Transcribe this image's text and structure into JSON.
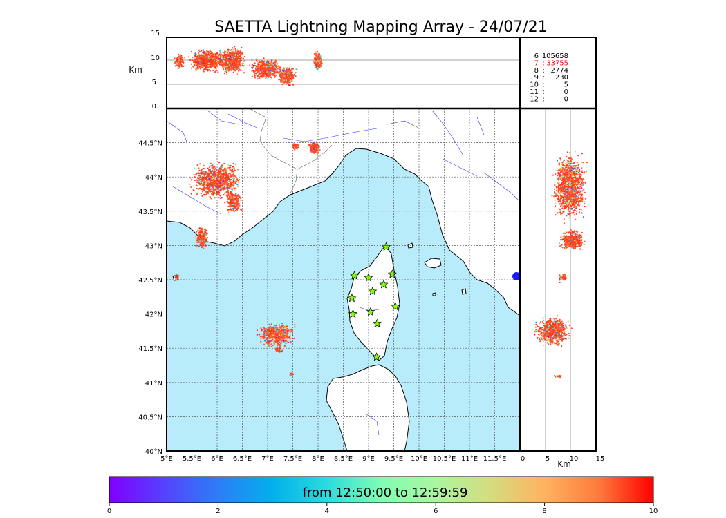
{
  "title": "SAETTA Lightning Mapping Array - 24/07/21",
  "top_panel": {
    "y_label": "Km",
    "y_ticks": [
      "15",
      "10",
      "5",
      "0"
    ],
    "y_range": [
      0,
      15
    ]
  },
  "right_panel": {
    "x_label": "Km",
    "x_ticks": [
      "0",
      "5",
      "10",
      "15"
    ],
    "x_range": [
      0,
      15
    ]
  },
  "map": {
    "lon_range": [
      5,
      12
    ],
    "lat_range": [
      40,
      45
    ],
    "lon_ticks": [
      "5°E",
      "5.5°E",
      "6°E",
      "6.5°E",
      "7°E",
      "7.5°E",
      "8°E",
      "8.5°E",
      "9°E",
      "9.5°E",
      "10°E",
      "10.5°E",
      "11°E",
      "11.5°E"
    ],
    "lat_ticks": [
      "44.5°N",
      "44°N",
      "43.5°N",
      "43°N",
      "42.5°N",
      "42°N",
      "41.5°N",
      "41°N",
      "40.5°N",
      "40°N"
    ],
    "sea_color": "#b8ecfb",
    "land_color": "#ffffff",
    "station_color": "#7fff00",
    "stations": [
      {
        "lon": 9.35,
        "lat": 42.98
      },
      {
        "lon": 8.72,
        "lat": 42.56
      },
      {
        "lon": 9.0,
        "lat": 42.53
      },
      {
        "lon": 9.47,
        "lat": 42.58
      },
      {
        "lon": 9.3,
        "lat": 42.43
      },
      {
        "lon": 9.08,
        "lat": 42.33
      },
      {
        "lon": 8.67,
        "lat": 42.23
      },
      {
        "lon": 9.53,
        "lat": 42.11
      },
      {
        "lon": 8.69,
        "lat": 42.0
      },
      {
        "lon": 9.04,
        "lat": 42.03
      },
      {
        "lon": 9.17,
        "lat": 41.86
      },
      {
        "lon": 9.16,
        "lat": 41.37
      }
    ]
  },
  "stats": [
    {
      "label": "6",
      "value": "105658",
      "color": "#000000"
    },
    {
      "label": "7",
      "value": "33755",
      "color": "#ff0000"
    },
    {
      "label": "8",
      "value": "2774",
      "color": "#000000"
    },
    {
      "label": "9",
      "value": "230",
      "color": "#000000"
    },
    {
      "label": "10",
      "value": "5",
      "color": "#000000"
    },
    {
      "label": "11",
      "value": "0",
      "color": "#000000"
    },
    {
      "label": "12",
      "value": "0",
      "color": "#000000"
    }
  ],
  "colorbar": {
    "label": "from 12:50:00 to 12:59:59",
    "ticks": [
      "0",
      "2",
      "4",
      "6",
      "8",
      "10"
    ],
    "range": [
      0,
      10
    ]
  }
}
